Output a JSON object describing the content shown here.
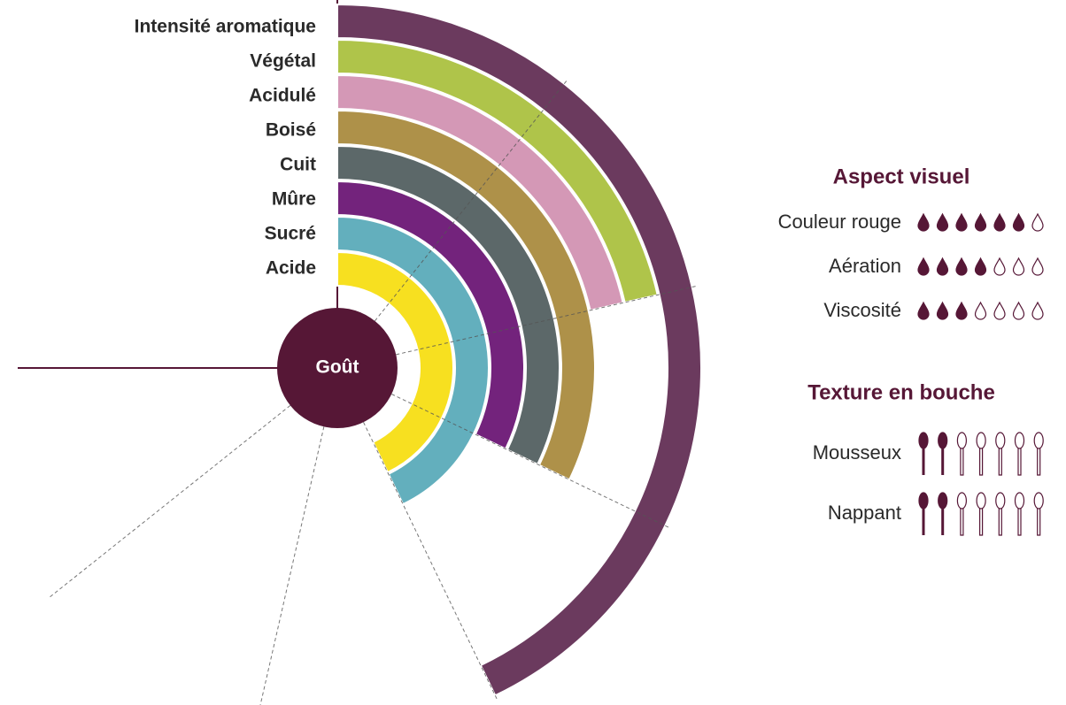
{
  "chart_data": {
    "type": "radial-bar",
    "center_label": "Goût",
    "categories": [
      "Intensité aromatique",
      "Végétal",
      "Acidulé",
      "Boisé",
      "Cuit",
      "Mûre",
      "Sucré",
      "Acide"
    ],
    "values": [
      4,
      2,
      2,
      3,
      3,
      3,
      4,
      4
    ],
    "colors": [
      "#6b3a5e",
      "#afc44a",
      "#d498b6",
      "#ae9149",
      "#5c6869",
      "#73237c",
      "#63afbd",
      "#f7e020"
    ],
    "rlim": [
      0,
      7
    ],
    "rticks": [
      1,
      2,
      3,
      4,
      5,
      6
    ],
    "center_color": "#561736"
  },
  "aspect_visuel": {
    "title": "Aspect visuel",
    "max": 7,
    "color": "#561736",
    "items": [
      {
        "label": "Couleur rouge",
        "value": 6
      },
      {
        "label": "Aération",
        "value": 4
      },
      {
        "label": "Viscosité",
        "value": 3
      }
    ]
  },
  "texture_en_bouche": {
    "title": "Texture en bouche",
    "max": 7,
    "color": "#561736",
    "items": [
      {
        "label": "Mousseux",
        "value": 2
      },
      {
        "label": "Nappant",
        "value": 2
      }
    ]
  }
}
